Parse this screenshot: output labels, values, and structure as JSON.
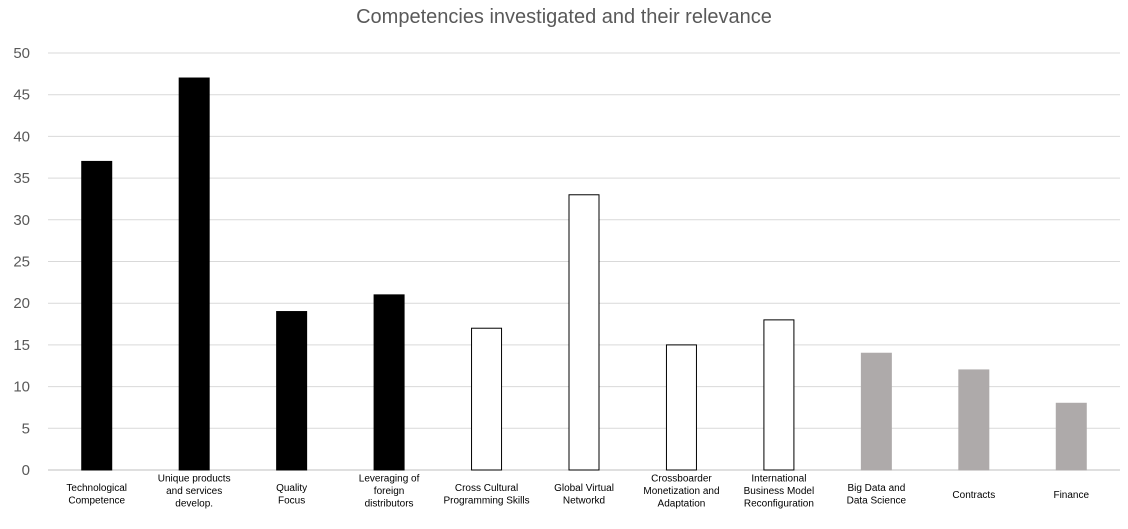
{
  "chart_data": {
    "type": "bar",
    "title": "Competencies investigated and their relevance",
    "xlabel": "",
    "ylabel": "",
    "ylim": [
      0,
      50
    ],
    "yticks": [
      0,
      5,
      10,
      15,
      20,
      25,
      30,
      35,
      40,
      45,
      50
    ],
    "grid": true,
    "legend": "none",
    "categories": [
      [
        "Technological",
        "Competence"
      ],
      [
        "Unique products",
        "and services",
        "develop."
      ],
      [
        "Quality",
        "Focus"
      ],
      [
        "Leveraging of",
        "foreign",
        "distributors"
      ],
      [
        "Cross Cultural",
        "Programming Skills"
      ],
      [
        "Global Virtual",
        "Networkd"
      ],
      [
        "Crossboarder",
        "Monetization and",
        "Adaptation"
      ],
      [
        "International",
        "Business Model",
        "Reconfiguration"
      ],
      [
        "Big Data and",
        "Data Science"
      ],
      [
        "Contracts"
      ],
      [
        "Finance"
      ]
    ],
    "values": [
      37,
      47,
      19,
      21,
      17,
      33,
      15,
      18,
      14,
      12,
      8
    ],
    "bar_styles": [
      {
        "fill": "#000000",
        "stroke": "#000000"
      },
      {
        "fill": "#000000",
        "stroke": "#000000"
      },
      {
        "fill": "#000000",
        "stroke": "#000000"
      },
      {
        "fill": "#000000",
        "stroke": "#000000"
      },
      {
        "fill": "#ffffff",
        "stroke": "#000000"
      },
      {
        "fill": "#ffffff",
        "stroke": "#000000"
      },
      {
        "fill": "#ffffff",
        "stroke": "#000000"
      },
      {
        "fill": "#ffffff",
        "stroke": "#000000"
      },
      {
        "fill": "#aeaaaa",
        "stroke": "#aeaaaa"
      },
      {
        "fill": "#aeaaaa",
        "stroke": "#aeaaaa"
      },
      {
        "fill": "#aeaaaa",
        "stroke": "#aeaaaa"
      }
    ]
  }
}
